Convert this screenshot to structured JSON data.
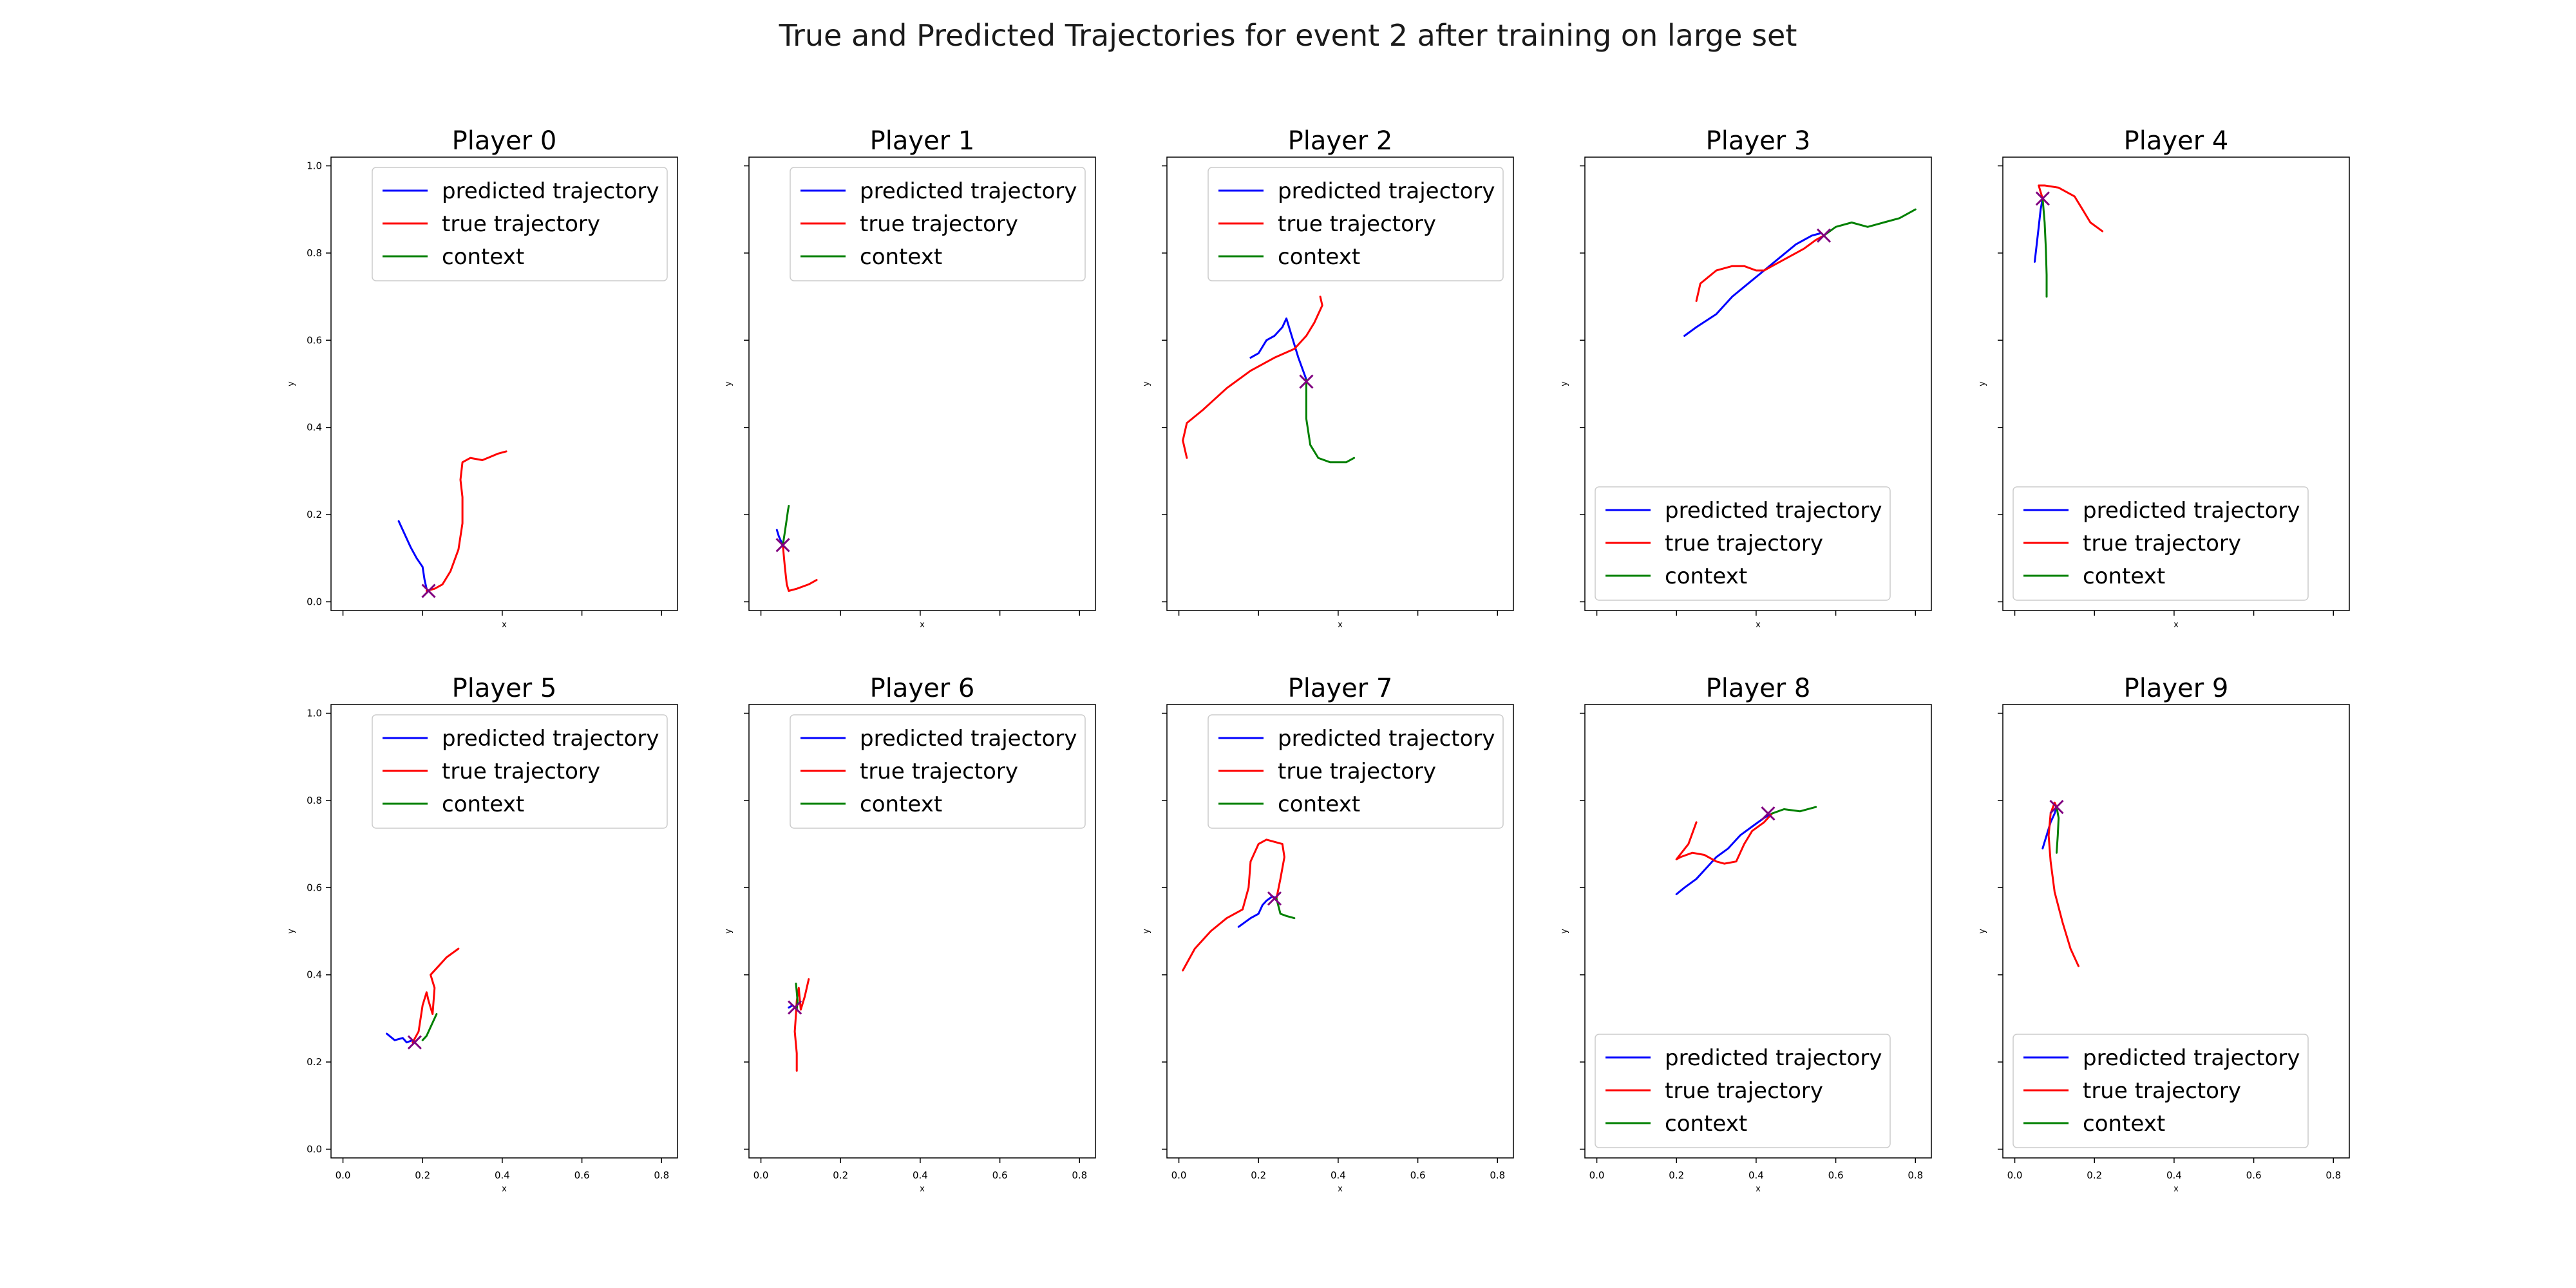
{
  "title": "True and Predicted Trajectories for event 2 after training on large set",
  "legend_labels": [
    "predicted trajectory",
    "true trajectory",
    "context"
  ],
  "colors": {
    "predicted": "#0000ff",
    "true": "#ff0000",
    "context": "#008000",
    "marker": "#800080"
  },
  "chart_data": [
    {
      "type": "line",
      "title": "Player 0",
      "xlabel": "x",
      "ylabel": "y",
      "xlim": [
        -0.03,
        0.84
      ],
      "ylim": [
        -0.02,
        1.02
      ],
      "x_ticks": [],
      "y_ticks": [
        0.0,
        0.2,
        0.4,
        0.6,
        0.8,
        1.0
      ],
      "legend_position": "upper right",
      "series": [
        {
          "name": "predicted trajectory",
          "x": [
            0.14,
            0.155,
            0.17,
            0.185,
            0.2,
            0.205,
            0.21
          ],
          "y": [
            0.185,
            0.155,
            0.125,
            0.1,
            0.08,
            0.05,
            0.03
          ]
        },
        {
          "name": "true trajectory",
          "x": [
            0.21,
            0.23,
            0.25,
            0.27,
            0.29,
            0.3,
            0.3,
            0.295,
            0.3,
            0.32,
            0.35,
            0.39,
            0.41
          ],
          "y": [
            0.025,
            0.03,
            0.04,
            0.07,
            0.12,
            0.18,
            0.24,
            0.28,
            0.32,
            0.33,
            0.325,
            0.34,
            0.345
          ]
        },
        {
          "name": "context",
          "x": [],
          "y": []
        }
      ],
      "marker": [
        0.215,
        0.025
      ]
    },
    {
      "type": "line",
      "title": "Player 1",
      "xlabel": "x",
      "ylabel": "y",
      "xlim": [
        -0.03,
        0.84
      ],
      "ylim": [
        -0.02,
        1.02
      ],
      "x_ticks": [],
      "y_ticks": [],
      "legend_position": "upper right",
      "series": [
        {
          "name": "predicted trajectory",
          "x": [
            0.04,
            0.045,
            0.055
          ],
          "y": [
            0.165,
            0.15,
            0.13
          ]
        },
        {
          "name": "true trajectory",
          "x": [
            0.055,
            0.06,
            0.065,
            0.07,
            0.09,
            0.12,
            0.14
          ],
          "y": [
            0.13,
            0.08,
            0.04,
            0.025,
            0.03,
            0.04,
            0.05
          ]
        },
        {
          "name": "context",
          "x": [
            0.055,
            0.06,
            0.065,
            0.068,
            0.07
          ],
          "y": [
            0.13,
            0.16,
            0.19,
            0.21,
            0.22
          ]
        }
      ],
      "marker": [
        0.055,
        0.13
      ]
    },
    {
      "type": "line",
      "title": "Player 2",
      "xlabel": "x",
      "ylabel": "y",
      "xlim": [
        -0.03,
        0.84
      ],
      "ylim": [
        -0.02,
        1.02
      ],
      "x_ticks": [],
      "y_ticks": [],
      "legend_position": "upper right",
      "series": [
        {
          "name": "predicted trajectory",
          "x": [
            0.18,
            0.2,
            0.22,
            0.24,
            0.26,
            0.27,
            0.28,
            0.3,
            0.32
          ],
          "y": [
            0.56,
            0.57,
            0.6,
            0.61,
            0.63,
            0.65,
            0.62,
            0.56,
            0.51
          ]
        },
        {
          "name": "true trajectory",
          "x": [
            0.02,
            0.01,
            0.02,
            0.06,
            0.12,
            0.18,
            0.24,
            0.29,
            0.32,
            0.34,
            0.36,
            0.355
          ],
          "y": [
            0.33,
            0.37,
            0.41,
            0.44,
            0.49,
            0.53,
            0.56,
            0.58,
            0.61,
            0.64,
            0.68,
            0.7
          ]
        },
        {
          "name": "context",
          "x": [
            0.32,
            0.32,
            0.33,
            0.35,
            0.38,
            0.42,
            0.44
          ],
          "y": [
            0.51,
            0.42,
            0.36,
            0.33,
            0.32,
            0.32,
            0.33
          ]
        }
      ],
      "marker": [
        0.32,
        0.505
      ]
    },
    {
      "type": "line",
      "title": "Player 3",
      "xlabel": "x",
      "ylabel": "y",
      "xlim": [
        -0.03,
        0.84
      ],
      "ylim": [
        -0.02,
        1.02
      ],
      "x_ticks": [],
      "y_ticks": [],
      "legend_position": "lower left",
      "series": [
        {
          "name": "predicted trajectory",
          "x": [
            0.22,
            0.25,
            0.3,
            0.34,
            0.38,
            0.42,
            0.46,
            0.5,
            0.54,
            0.56
          ],
          "y": [
            0.61,
            0.63,
            0.66,
            0.7,
            0.73,
            0.76,
            0.79,
            0.82,
            0.84,
            0.845
          ]
        },
        {
          "name": "true trajectory",
          "x": [
            0.25,
            0.26,
            0.3,
            0.34,
            0.37,
            0.4,
            0.42,
            0.44,
            0.48,
            0.52,
            0.55,
            0.57
          ],
          "y": [
            0.69,
            0.73,
            0.76,
            0.77,
            0.77,
            0.76,
            0.76,
            0.77,
            0.79,
            0.81,
            0.83,
            0.84
          ]
        },
        {
          "name": "context",
          "x": [
            0.57,
            0.6,
            0.64,
            0.68,
            0.72,
            0.76,
            0.8
          ],
          "y": [
            0.84,
            0.86,
            0.87,
            0.86,
            0.87,
            0.88,
            0.9
          ]
        }
      ],
      "marker": [
        0.57,
        0.84
      ]
    },
    {
      "type": "line",
      "title": "Player 4",
      "xlabel": "x",
      "ylabel": "y",
      "xlim": [
        -0.03,
        0.84
      ],
      "ylim": [
        -0.02,
        1.02
      ],
      "x_ticks": [],
      "y_ticks": [],
      "legend_position": "lower left",
      "series": [
        {
          "name": "predicted trajectory",
          "x": [
            0.05,
            0.055,
            0.06,
            0.065,
            0.07
          ],
          "y": [
            0.78,
            0.82,
            0.86,
            0.9,
            0.925
          ]
        },
        {
          "name": "true trajectory",
          "x": [
            0.07,
            0.065,
            0.06,
            0.075,
            0.11,
            0.15,
            0.17,
            0.19,
            0.22
          ],
          "y": [
            0.925,
            0.94,
            0.955,
            0.955,
            0.95,
            0.93,
            0.9,
            0.87,
            0.85
          ]
        },
        {
          "name": "context",
          "x": [
            0.07,
            0.075,
            0.078,
            0.08,
            0.08
          ],
          "y": [
            0.925,
            0.87,
            0.81,
            0.75,
            0.7
          ]
        }
      ],
      "marker": [
        0.07,
        0.925
      ]
    },
    {
      "type": "line",
      "title": "Player 5",
      "xlabel": "x",
      "ylabel": "y",
      "xlim": [
        -0.03,
        0.84
      ],
      "ylim": [
        -0.02,
        1.02
      ],
      "x_ticks": [
        0.0,
        0.2,
        0.4,
        0.6,
        0.8
      ],
      "y_ticks": [
        0.0,
        0.2,
        0.4,
        0.6,
        0.8,
        1.0
      ],
      "legend_position": "upper right",
      "series": [
        {
          "name": "predicted trajectory",
          "x": [
            0.11,
            0.13,
            0.15,
            0.16,
            0.175
          ],
          "y": [
            0.265,
            0.25,
            0.255,
            0.245,
            0.25
          ]
        },
        {
          "name": "true trajectory",
          "x": [
            0.175,
            0.19,
            0.2,
            0.21,
            0.215,
            0.225,
            0.23,
            0.22,
            0.24,
            0.26,
            0.29
          ],
          "y": [
            0.245,
            0.27,
            0.33,
            0.36,
            0.34,
            0.31,
            0.37,
            0.4,
            0.42,
            0.44,
            0.46
          ]
        },
        {
          "name": "context",
          "x": [
            0.2,
            0.21,
            0.22,
            0.23,
            0.235
          ],
          "y": [
            0.25,
            0.26,
            0.28,
            0.3,
            0.31
          ]
        }
      ],
      "marker": [
        0.18,
        0.245
      ]
    },
    {
      "type": "line",
      "title": "Player 6",
      "xlabel": "x",
      "ylabel": "y",
      "xlim": [
        -0.03,
        0.84
      ],
      "ylim": [
        -0.02,
        1.02
      ],
      "x_ticks": [
        0.0,
        0.2,
        0.4,
        0.6,
        0.8
      ],
      "y_ticks": [],
      "legend_position": "upper right",
      "series": [
        {
          "name": "predicted trajectory",
          "x": [
            0.07,
            0.08,
            0.09
          ],
          "y": [
            0.325,
            0.33,
            0.32
          ]
        },
        {
          "name": "true trajectory",
          "x": [
            0.09,
            0.09,
            0.085,
            0.088,
            0.09,
            0.095,
            0.1,
            0.11,
            0.12
          ],
          "y": [
            0.18,
            0.22,
            0.27,
            0.31,
            0.34,
            0.37,
            0.32,
            0.35,
            0.39
          ]
        },
        {
          "name": "context",
          "x": [
            0.09,
            0.092,
            0.09,
            0.088
          ],
          "y": [
            0.32,
            0.34,
            0.36,
            0.38
          ]
        }
      ],
      "marker": [
        0.085,
        0.325
      ]
    },
    {
      "type": "line",
      "title": "Player 7",
      "xlabel": "x",
      "ylabel": "y",
      "xlim": [
        -0.03,
        0.84
      ],
      "ylim": [
        -0.02,
        1.02
      ],
      "x_ticks": [
        0.0,
        0.2,
        0.4,
        0.6,
        0.8
      ],
      "y_ticks": [],
      "legend_position": "upper right",
      "series": [
        {
          "name": "predicted trajectory",
          "x": [
            0.15,
            0.18,
            0.2,
            0.21,
            0.22,
            0.235,
            0.245
          ],
          "y": [
            0.51,
            0.53,
            0.54,
            0.56,
            0.57,
            0.58,
            0.575
          ]
        },
        {
          "name": "true trajectory",
          "x": [
            0.01,
            0.04,
            0.08,
            0.12,
            0.16,
            0.175,
            0.18,
            0.2,
            0.22,
            0.26,
            0.265,
            0.255,
            0.245
          ],
          "y": [
            0.41,
            0.46,
            0.5,
            0.53,
            0.55,
            0.6,
            0.66,
            0.7,
            0.71,
            0.7,
            0.67,
            0.62,
            0.575
          ]
        },
        {
          "name": "context",
          "x": [
            0.245,
            0.255,
            0.27,
            0.29
          ],
          "y": [
            0.575,
            0.54,
            0.535,
            0.53
          ]
        }
      ],
      "marker": [
        0.24,
        0.575
      ]
    },
    {
      "type": "line",
      "title": "Player 8",
      "xlabel": "x",
      "ylabel": "y",
      "xlim": [
        -0.03,
        0.84
      ],
      "ylim": [
        -0.02,
        1.02
      ],
      "x_ticks": [
        0.0,
        0.2,
        0.4,
        0.6,
        0.8
      ],
      "y_ticks": [],
      "legend_position": "lower left",
      "series": [
        {
          "name": "predicted trajectory",
          "x": [
            0.2,
            0.22,
            0.25,
            0.28,
            0.3,
            0.33,
            0.36,
            0.39,
            0.42,
            0.44
          ],
          "y": [
            0.585,
            0.6,
            0.62,
            0.65,
            0.67,
            0.69,
            0.72,
            0.74,
            0.76,
            0.77
          ]
        },
        {
          "name": "true trajectory",
          "x": [
            0.25,
            0.23,
            0.2,
            0.21,
            0.24,
            0.27,
            0.3,
            0.32,
            0.35,
            0.37,
            0.39,
            0.42,
            0.44
          ],
          "y": [
            0.75,
            0.7,
            0.665,
            0.67,
            0.68,
            0.675,
            0.66,
            0.655,
            0.66,
            0.7,
            0.73,
            0.75,
            0.77
          ]
        },
        {
          "name": "context",
          "x": [
            0.44,
            0.47,
            0.51,
            0.55
          ],
          "y": [
            0.77,
            0.78,
            0.775,
            0.785
          ]
        }
      ],
      "marker": [
        0.43,
        0.77
      ]
    },
    {
      "type": "line",
      "title": "Player 9",
      "xlabel": "x",
      "ylabel": "y",
      "xlim": [
        -0.03,
        0.84
      ],
      "ylim": [
        -0.02,
        1.02
      ],
      "x_ticks": [
        0.0,
        0.2,
        0.4,
        0.6,
        0.8
      ],
      "y_ticks": [],
      "legend_position": "lower left",
      "series": [
        {
          "name": "predicted trajectory",
          "x": [
            0.07,
            0.08,
            0.09,
            0.1,
            0.105
          ],
          "y": [
            0.69,
            0.72,
            0.75,
            0.77,
            0.785
          ]
        },
        {
          "name": "true trajectory",
          "x": [
            0.16,
            0.14,
            0.12,
            0.1,
            0.09,
            0.085,
            0.09,
            0.1,
            0.105
          ],
          "y": [
            0.42,
            0.46,
            0.52,
            0.59,
            0.66,
            0.72,
            0.77,
            0.795,
            0.785
          ]
        },
        {
          "name": "context",
          "x": [
            0.105,
            0.11,
            0.108,
            0.105
          ],
          "y": [
            0.785,
            0.76,
            0.72,
            0.68
          ]
        }
      ],
      "marker": [
        0.105,
        0.785
      ]
    }
  ]
}
